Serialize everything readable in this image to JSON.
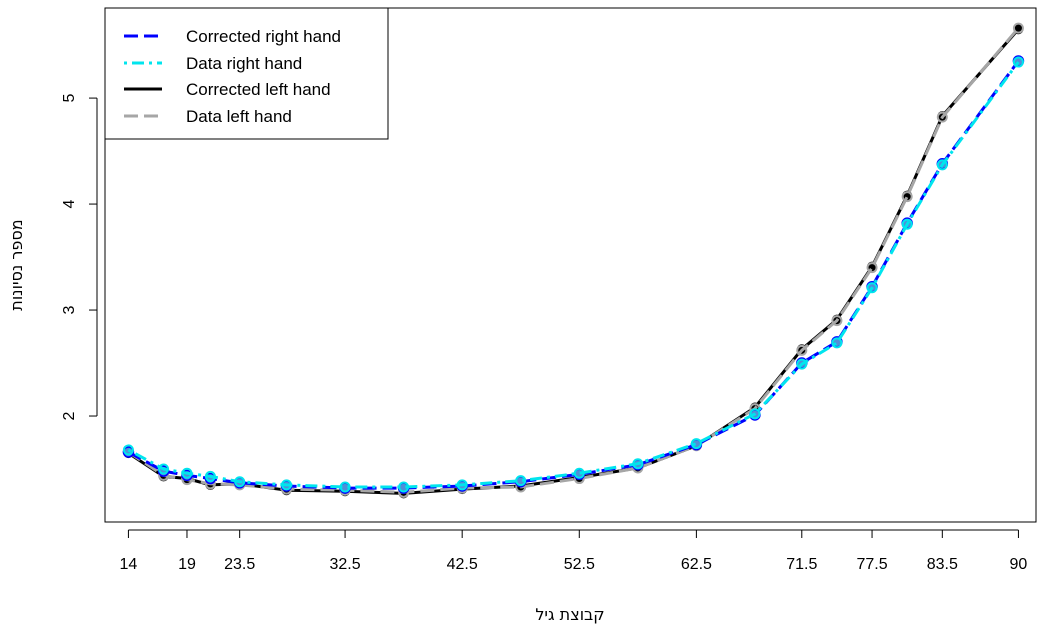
{
  "chart_data": {
    "type": "line",
    "xlabel": "קבוצת גיל",
    "ylabel": "מספר נסיונות",
    "x_tick_labels": [
      "14",
      "19",
      "23.5",
      "32.5",
      "42.5",
      "52.5",
      "62.5",
      "71.5",
      "77.5",
      "83.5",
      "90"
    ],
    "y_tick_labels": [
      "2",
      "3",
      "4",
      "5"
    ],
    "xlim": [
      12,
      91.5
    ],
    "ylim": [
      1.0,
      5.85
    ],
    "legend_position": "top-left",
    "x": [
      14,
      17,
      19,
      21,
      23.5,
      27.5,
      32.5,
      37.5,
      42.5,
      47.5,
      52.5,
      57.5,
      62.5,
      67.5,
      71.5,
      74.5,
      77.5,
      80.5,
      83.5,
      90
    ],
    "series": [
      {
        "name": "Corrected right hand",
        "color": "#0000ff",
        "dash": "dashed",
        "values": [
          1.66,
          1.48,
          1.44,
          1.41,
          1.37,
          1.34,
          1.32,
          1.32,
          1.34,
          1.38,
          1.45,
          1.54,
          1.73,
          2.01,
          2.5,
          2.7,
          3.22,
          3.82,
          4.38,
          5.35
        ]
      },
      {
        "name": "Data right hand",
        "color": "#00e5ee",
        "dash": "dotdash",
        "values": [
          1.68,
          1.5,
          1.46,
          1.43,
          1.38,
          1.35,
          1.33,
          1.33,
          1.35,
          1.39,
          1.46,
          1.55,
          1.74,
          2.02,
          2.49,
          2.69,
          3.21,
          3.81,
          4.37,
          5.34
        ]
      },
      {
        "name": "Corrected left hand",
        "color": "#000000",
        "dash": "solid",
        "values": [
          1.65,
          1.43,
          1.41,
          1.35,
          1.36,
          1.3,
          1.29,
          1.27,
          1.31,
          1.34,
          1.42,
          1.51,
          1.72,
          2.08,
          2.63,
          2.91,
          3.41,
          4.08,
          4.83,
          5.65
        ]
      },
      {
        "name": "Data left hand",
        "color": "#a6a6a6",
        "dash": "dashed",
        "values": [
          1.66,
          1.44,
          1.4,
          1.36,
          1.35,
          1.31,
          1.3,
          1.28,
          1.32,
          1.33,
          1.41,
          1.51,
          1.72,
          2.07,
          2.62,
          2.9,
          3.4,
          4.07,
          4.82,
          5.66
        ]
      }
    ]
  }
}
